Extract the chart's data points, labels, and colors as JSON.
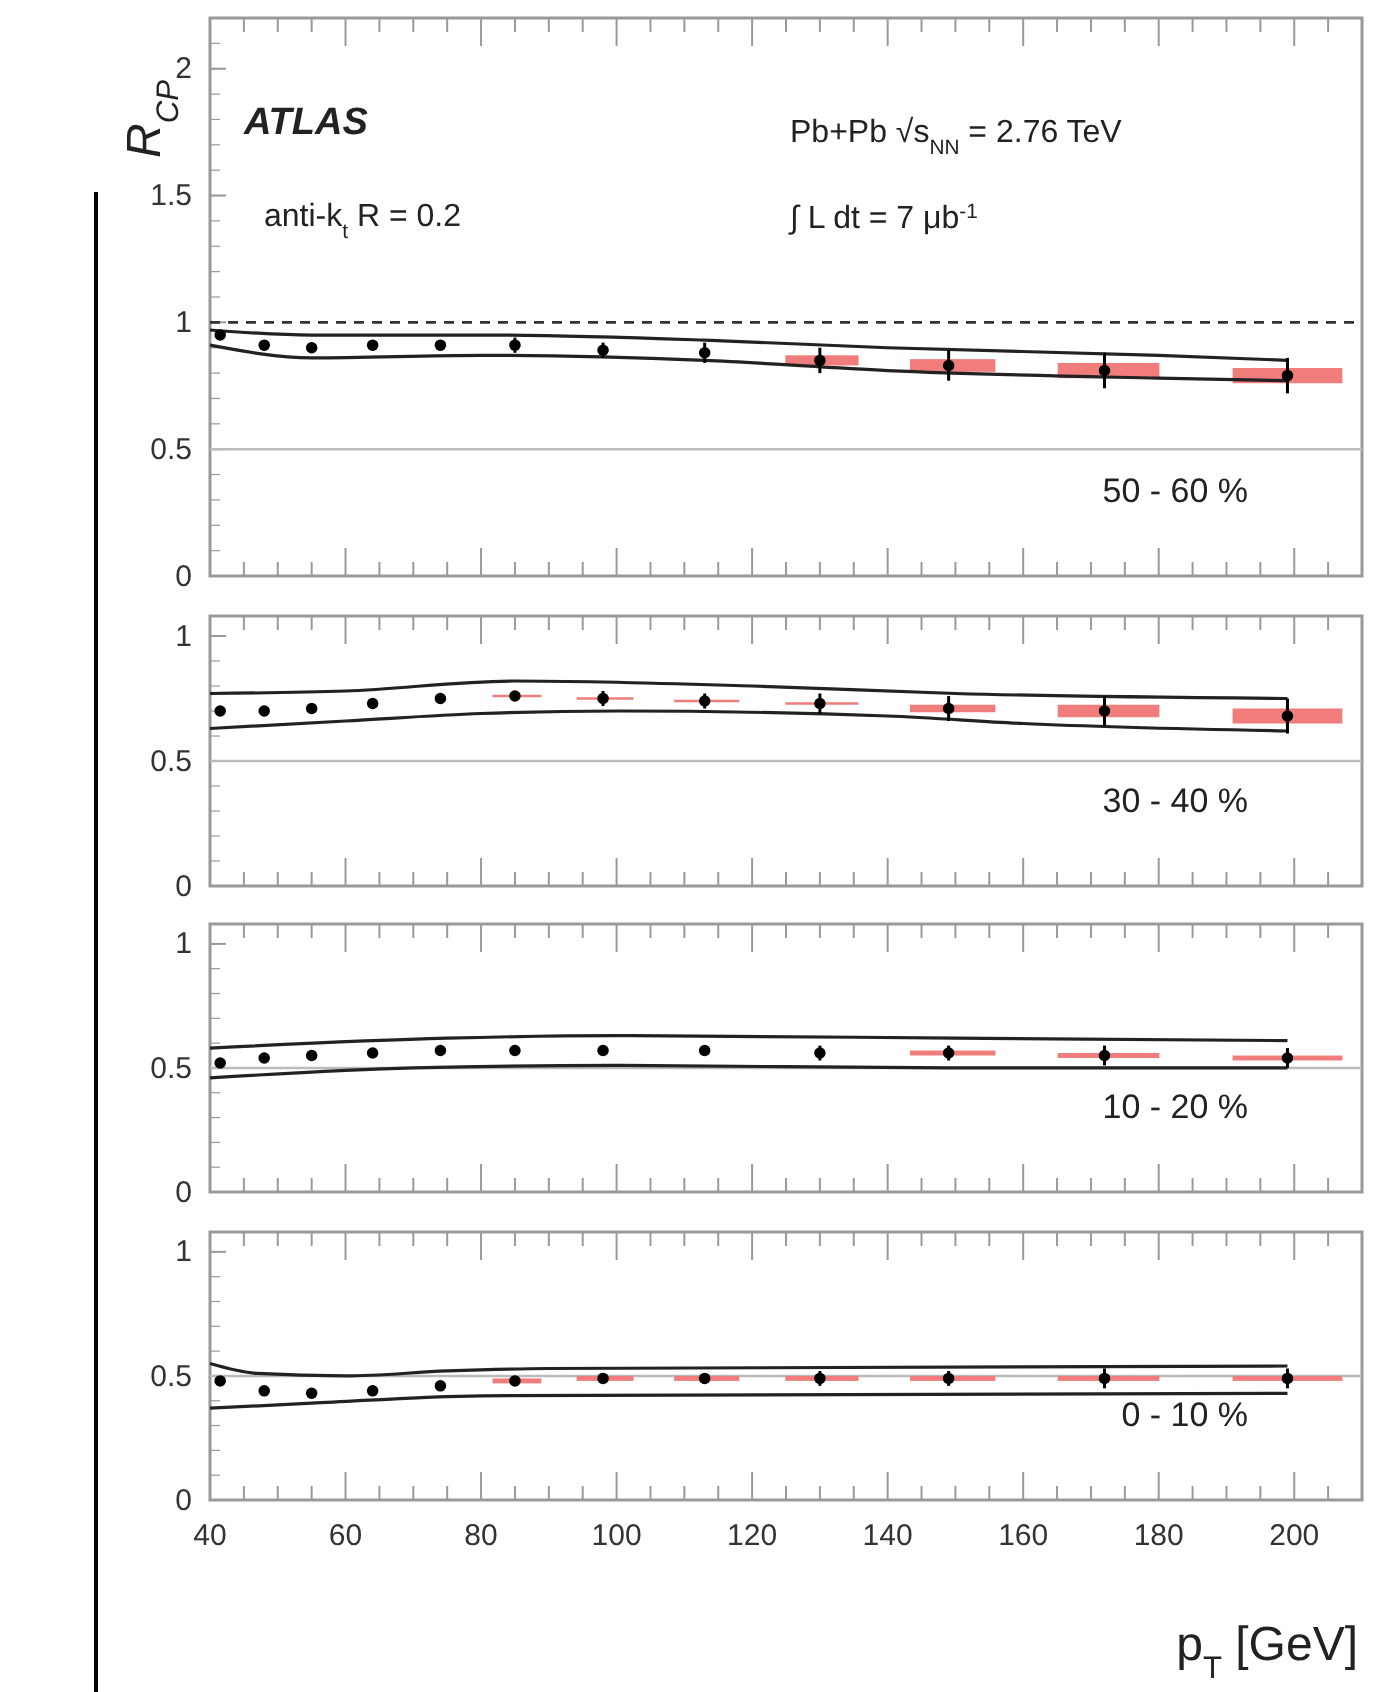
{
  "chart_data": [
    {
      "type": "scatter",
      "ylabel": "R$_{CP}$",
      "annotations": [
        "ATLAS",
        "anti-k$_{t}$ R = 0.2",
        "Pb+Pb √s$_{NN}$ = 2.76 TeV",
        "∫ L dt = 7 μb$^{-1}$",
        "50 - 60 %"
      ],
      "x": [
        41.5,
        48,
        55,
        64,
        74,
        85,
        98,
        113,
        130,
        149,
        172,
        199
      ],
      "xlim": [
        40,
        210
      ],
      "xticks": [
        40,
        60,
        80,
        100,
        120,
        140,
        160,
        180,
        200
      ],
      "ylim": [
        0,
        2.2
      ],
      "yticks": [
        0,
        0.5,
        1,
        1.5,
        2
      ],
      "tick_labels": "y",
      "ref_lines": [
        {
          "axis": "y",
          "value": 1,
          "line_style": "dashed",
          "color": "#333333"
        },
        {
          "axis": "y",
          "value": 0.5,
          "line_style": "solid",
          "color": "#bbbbbb"
        }
      ],
      "series": [
        {
          "type": "bar",
          "color": "#f07c7c",
          "base": [
            null,
            null,
            null,
            null,
            null,
            null,
            null,
            null,
            0.83,
            0.805,
            0.78,
            0.76
          ],
          "values": [
            null,
            null,
            null,
            null,
            null,
            null,
            null,
            null,
            0.04,
            0.05,
            0.06,
            0.06
          ]
        },
        {
          "type": "line",
          "color": "#222222",
          "x": [
            40,
            55,
            80,
            113,
            140,
            180,
            199
          ],
          "values": [
            0.97,
            0.95,
            0.95,
            0.93,
            0.9,
            0.87,
            0.85
          ]
        },
        {
          "type": "line",
          "color": "#222222",
          "x": [
            40,
            55,
            80,
            113,
            140,
            180,
            199
          ],
          "values": [
            0.91,
            0.86,
            0.87,
            0.85,
            0.81,
            0.78,
            0.77
          ]
        },
        {
          "color": "#000000",
          "marker": "circle",
          "values": [
            0.95,
            0.91,
            0.9,
            0.91,
            0.91,
            0.91,
            0.89,
            0.88,
            0.85,
            0.83,
            0.81,
            0.79
          ],
          "errors": [
            0.02,
            0.02,
            0.02,
            0.02,
            0.02,
            0.03,
            0.03,
            0.04,
            0.05,
            0.06,
            0.07,
            0.07
          ]
        }
      ]
    },
    {
      "type": "scatter",
      "annotations": [
        "30 - 40 %"
      ],
      "x": [
        41.5,
        48,
        55,
        64,
        74,
        85,
        98,
        113,
        130,
        149,
        172,
        199
      ],
      "xlim": [
        40,
        210
      ],
      "xticks": [
        40,
        60,
        80,
        100,
        120,
        140,
        160,
        180,
        200
      ],
      "ylim": [
        0,
        1.08
      ],
      "yticks": [
        0,
        0.5,
        1
      ],
      "tick_labels": "y",
      "ref_lines": [
        {
          "axis": "y",
          "value": 0.5,
          "line_style": "solid",
          "color": "#bbbbbb"
        }
      ],
      "series": [
        {
          "type": "bar",
          "color": "#f07c7c",
          "base": [
            null,
            null,
            null,
            null,
            null,
            0.755,
            0.745,
            0.735,
            0.725,
            0.695,
            0.675,
            0.65
          ],
          "values": [
            null,
            null,
            null,
            null,
            null,
            0.01,
            0.01,
            0.01,
            0.01,
            0.03,
            0.05,
            0.06
          ]
        },
        {
          "type": "line",
          "color": "#222222",
          "x": [
            40,
            60,
            85,
            120,
            150,
            199
          ],
          "values": [
            0.77,
            0.78,
            0.82,
            0.8,
            0.77,
            0.75
          ]
        },
        {
          "type": "line",
          "color": "#222222",
          "x": [
            40,
            60,
            80,
            100,
            140,
            160,
            199
          ],
          "values": [
            0.63,
            0.66,
            0.69,
            0.7,
            0.68,
            0.65,
            0.62
          ]
        },
        {
          "color": "#000000",
          "marker": "circle",
          "values": [
            0.7,
            0.7,
            0.71,
            0.73,
            0.75,
            0.76,
            0.75,
            0.74,
            0.73,
            0.71,
            0.7,
            0.68
          ],
          "errors": [
            0.01,
            0.01,
            0.01,
            0.02,
            0.02,
            0.02,
            0.03,
            0.03,
            0.04,
            0.05,
            0.06,
            0.07
          ]
        }
      ]
    },
    {
      "type": "scatter",
      "annotations": [
        "10 - 20 %"
      ],
      "x": [
        41.5,
        48,
        55,
        64,
        74,
        85,
        98,
        113,
        130,
        149,
        172,
        199
      ],
      "xlim": [
        40,
        210
      ],
      "xticks": [
        40,
        60,
        80,
        100,
        120,
        140,
        160,
        180,
        200
      ],
      "ylim": [
        0,
        1.08
      ],
      "yticks": [
        0,
        0.5,
        1
      ],
      "tick_labels": "y",
      "ref_lines": [
        {
          "axis": "y",
          "value": 0.5,
          "line_style": "solid",
          "color": "#bbbbbb"
        }
      ],
      "series": [
        {
          "type": "bar",
          "color": "#f07c7c",
          "base": [
            null,
            null,
            null,
            null,
            null,
            null,
            null,
            null,
            null,
            0.55,
            0.54,
            0.53
          ],
          "values": [
            null,
            null,
            null,
            null,
            null,
            null,
            null,
            null,
            null,
            0.02,
            0.02,
            0.02
          ]
        },
        {
          "type": "line",
          "color": "#222222",
          "x": [
            40,
            75,
            100,
            150,
            199
          ],
          "values": [
            0.58,
            0.62,
            0.63,
            0.62,
            0.61
          ]
        },
        {
          "type": "line",
          "color": "#222222",
          "x": [
            40,
            70,
            100,
            150,
            199
          ],
          "values": [
            0.46,
            0.5,
            0.51,
            0.5,
            0.5
          ]
        },
        {
          "color": "#000000",
          "marker": "circle",
          "values": [
            0.52,
            0.54,
            0.55,
            0.56,
            0.57,
            0.57,
            0.57,
            0.57,
            0.56,
            0.56,
            0.55,
            0.54
          ],
          "errors": [
            0.01,
            0.01,
            0.01,
            0.01,
            0.01,
            0.02,
            0.02,
            0.02,
            0.03,
            0.03,
            0.04,
            0.04
          ]
        }
      ]
    },
    {
      "type": "scatter",
      "annotations": [
        "0 - 10 %"
      ],
      "xlabel": "p$_{T}$ [GeV]",
      "x": [
        41.5,
        48,
        55,
        64,
        74,
        85,
        98,
        113,
        130,
        149,
        172,
        199
      ],
      "xlim": [
        40,
        210
      ],
      "xticks": [
        40,
        60,
        80,
        100,
        120,
        140,
        160,
        180,
        200
      ],
      "ylim": [
        0,
        1.08
      ],
      "yticks": [
        0,
        0.5,
        1
      ],
      "ref_lines": [
        {
          "axis": "y",
          "value": 0.5,
          "line_style": "solid",
          "color": "#bbbbbb"
        }
      ],
      "series": [
        {
          "type": "bar",
          "color": "#f07c7c",
          "base": [
            null,
            null,
            null,
            null,
            null,
            0.47,
            0.48,
            0.48,
            0.48,
            0.48,
            0.48,
            0.48
          ],
          "values": [
            null,
            null,
            null,
            null,
            null,
            0.02,
            0.02,
            0.02,
            0.02,
            0.02,
            0.02,
            0.02
          ]
        },
        {
          "type": "line",
          "color": "#222222",
          "x": [
            40,
            47,
            60,
            75,
            90,
            199
          ],
          "values": [
            0.55,
            0.51,
            0.5,
            0.52,
            0.53,
            0.54
          ]
        },
        {
          "type": "line",
          "color": "#222222",
          "x": [
            40,
            55,
            80,
            199
          ],
          "values": [
            0.37,
            0.39,
            0.42,
            0.43
          ]
        },
        {
          "color": "#000000",
          "marker": "circle",
          "values": [
            0.48,
            0.44,
            0.43,
            0.44,
            0.46,
            0.48,
            0.49,
            0.49,
            0.49,
            0.49,
            0.49,
            0.49
          ],
          "errors": [
            0.01,
            0.01,
            0.01,
            0.01,
            0.01,
            0.02,
            0.02,
            0.02,
            0.03,
            0.03,
            0.04,
            0.04
          ]
        }
      ]
    }
  ]
}
